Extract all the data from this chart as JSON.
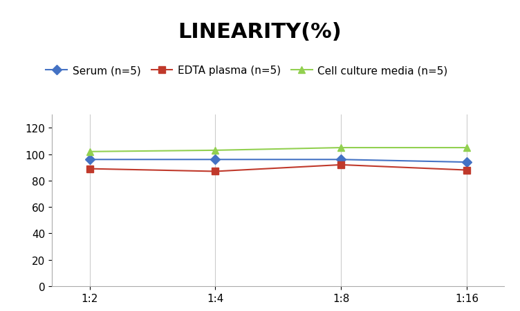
{
  "title": "LINEARITY(%)",
  "x_labels": [
    "1:2",
    "1:4",
    "1:8",
    "1:16"
  ],
  "series": [
    {
      "label": "Serum (n=5)",
      "color": "#4472C4",
      "marker": "D",
      "values": [
        96,
        96,
        96,
        94
      ]
    },
    {
      "label": "EDTA plasma (n=5)",
      "color": "#C0392B",
      "marker": "s",
      "values": [
        89,
        87,
        92,
        88
      ]
    },
    {
      "label": "Cell culture media (n=5)",
      "color": "#92D050",
      "marker": "^",
      "values": [
        102,
        103,
        105,
        105
      ]
    }
  ],
  "ylim": [
    0,
    130
  ],
  "yticks": [
    0,
    20,
    40,
    60,
    80,
    100,
    120
  ],
  "title_fontsize": 22,
  "legend_fontsize": 11,
  "tick_fontsize": 11,
  "background_color": "#ffffff",
  "grid_color": "#cccccc"
}
